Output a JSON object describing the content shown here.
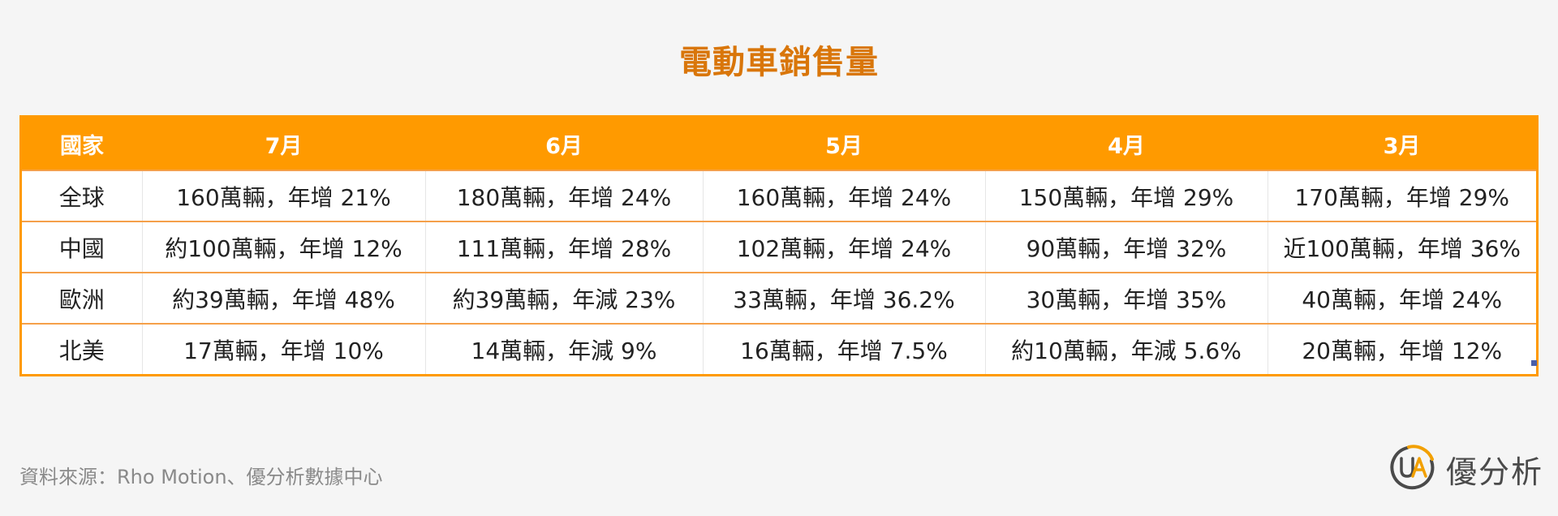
{
  "title": "電動車銷售量",
  "table": {
    "headers": [
      "國家",
      "7月",
      "6月",
      "5月",
      "4月",
      "3月"
    ],
    "rows": [
      [
        "全球",
        "160萬輛，年增 21%",
        "180萬輛，年增 24%",
        "160萬輛，年增 24%",
        "150萬輛，年增 29%",
        "170萬輛，年增 29%"
      ],
      [
        "中國",
        "約100萬輛，年增 12%",
        "111萬輛，年增 28%",
        "102萬輛，年增 24%",
        "90萬輛，年增 32%",
        "近100萬輛，年增 36%"
      ],
      [
        "歐洲",
        "約39萬輛，年增 48%",
        "約39萬輛，年減 23%",
        "33萬輛，年增 36.2%",
        "30萬輛，年增 35%",
        "40萬輛，年增 24%"
      ],
      [
        "北美",
        "17萬輛，年增 10%",
        "14萬輛，年減 9%",
        "16萬輛，年增 7.5%",
        "約10萬輛，年減 5.6%",
        "20萬輛，年增 12%"
      ]
    ]
  },
  "source": "資料來源：Rho Motion、優分析數據中心",
  "brand": {
    "logo_icon": "ua-logo-icon",
    "name": "優分析"
  },
  "colors": {
    "accent": "#ff9a00",
    "title": "#d9760a",
    "row_divider": "#f5a04a",
    "source_text": "#8a8a8a"
  }
}
